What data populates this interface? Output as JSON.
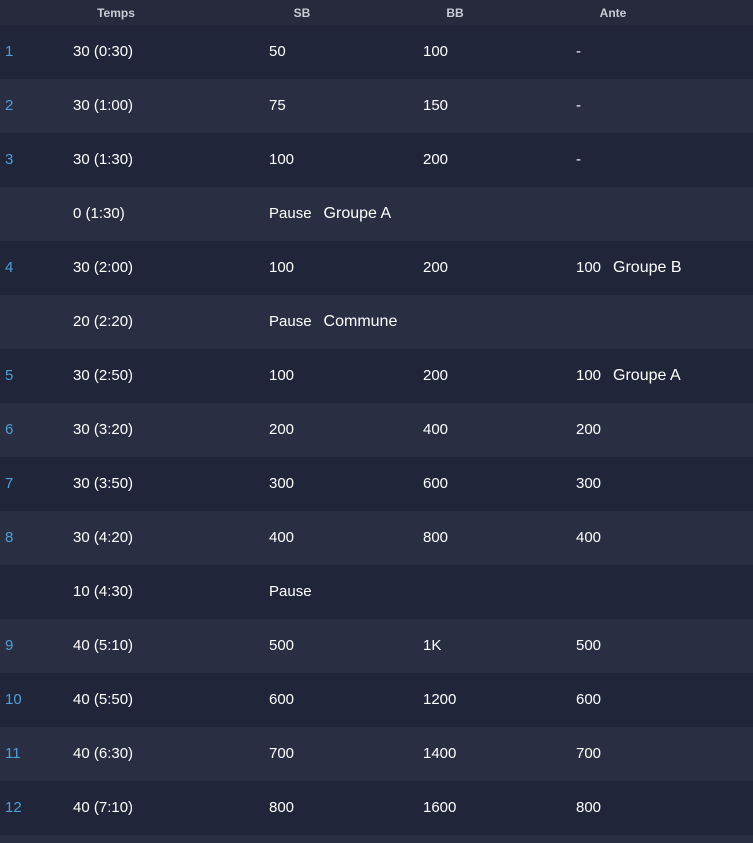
{
  "header": {
    "temps": "Temps",
    "sb": "SB",
    "bb": "BB",
    "ante": "Ante"
  },
  "rows": [
    {
      "level": "1",
      "temps": "30 (0:30)",
      "sb": "50",
      "bb": "100",
      "ante": "-",
      "note": ""
    },
    {
      "level": "2",
      "temps": "30 (1:00)",
      "sb": "75",
      "bb": "150",
      "ante": "-",
      "note": ""
    },
    {
      "level": "3",
      "temps": "30 (1:30)",
      "sb": "100",
      "bb": "200",
      "ante": "-",
      "note": ""
    },
    {
      "level": "",
      "temps": "0 (1:30)",
      "sb": "Pause",
      "bb": "",
      "ante": "",
      "note": "Groupe A",
      "note_col": "sb"
    },
    {
      "level": "4",
      "temps": "30 (2:00)",
      "sb": "100",
      "bb": "200",
      "ante": "100",
      "note": "Groupe B",
      "note_col": "ante"
    },
    {
      "level": "",
      "temps": "20 (2:20)",
      "sb": "Pause",
      "bb": "",
      "ante": "",
      "note": "Commune",
      "note_col": "sb"
    },
    {
      "level": "5",
      "temps": "30 (2:50)",
      "sb": "100",
      "bb": "200",
      "ante": "100",
      "note": "Groupe A",
      "note_col": "ante"
    },
    {
      "level": "6",
      "temps": "30 (3:20)",
      "sb": "200",
      "bb": "400",
      "ante": "200",
      "note": ""
    },
    {
      "level": "7",
      "temps": "30 (3:50)",
      "sb": "300",
      "bb": "600",
      "ante": "300",
      "note": ""
    },
    {
      "level": "8",
      "temps": "30 (4:20)",
      "sb": "400",
      "bb": "800",
      "ante": "400",
      "note": ""
    },
    {
      "level": "",
      "temps": "10 (4:30)",
      "sb": "Pause",
      "bb": "",
      "ante": "",
      "note": ""
    },
    {
      "level": "9",
      "temps": "40 (5:10)",
      "sb": "500",
      "bb": "1K",
      "ante": "500",
      "note": ""
    },
    {
      "level": "10",
      "temps": "40 (5:50)",
      "sb": "600",
      "bb": "1200",
      "ante": "600",
      "note": ""
    },
    {
      "level": "11",
      "temps": "40 (6:30)",
      "sb": "700",
      "bb": "1400",
      "ante": "700",
      "note": ""
    },
    {
      "level": "12",
      "temps": "40 (7:10)",
      "sb": "800",
      "bb": "1600",
      "ante": "800",
      "note": ""
    }
  ]
}
